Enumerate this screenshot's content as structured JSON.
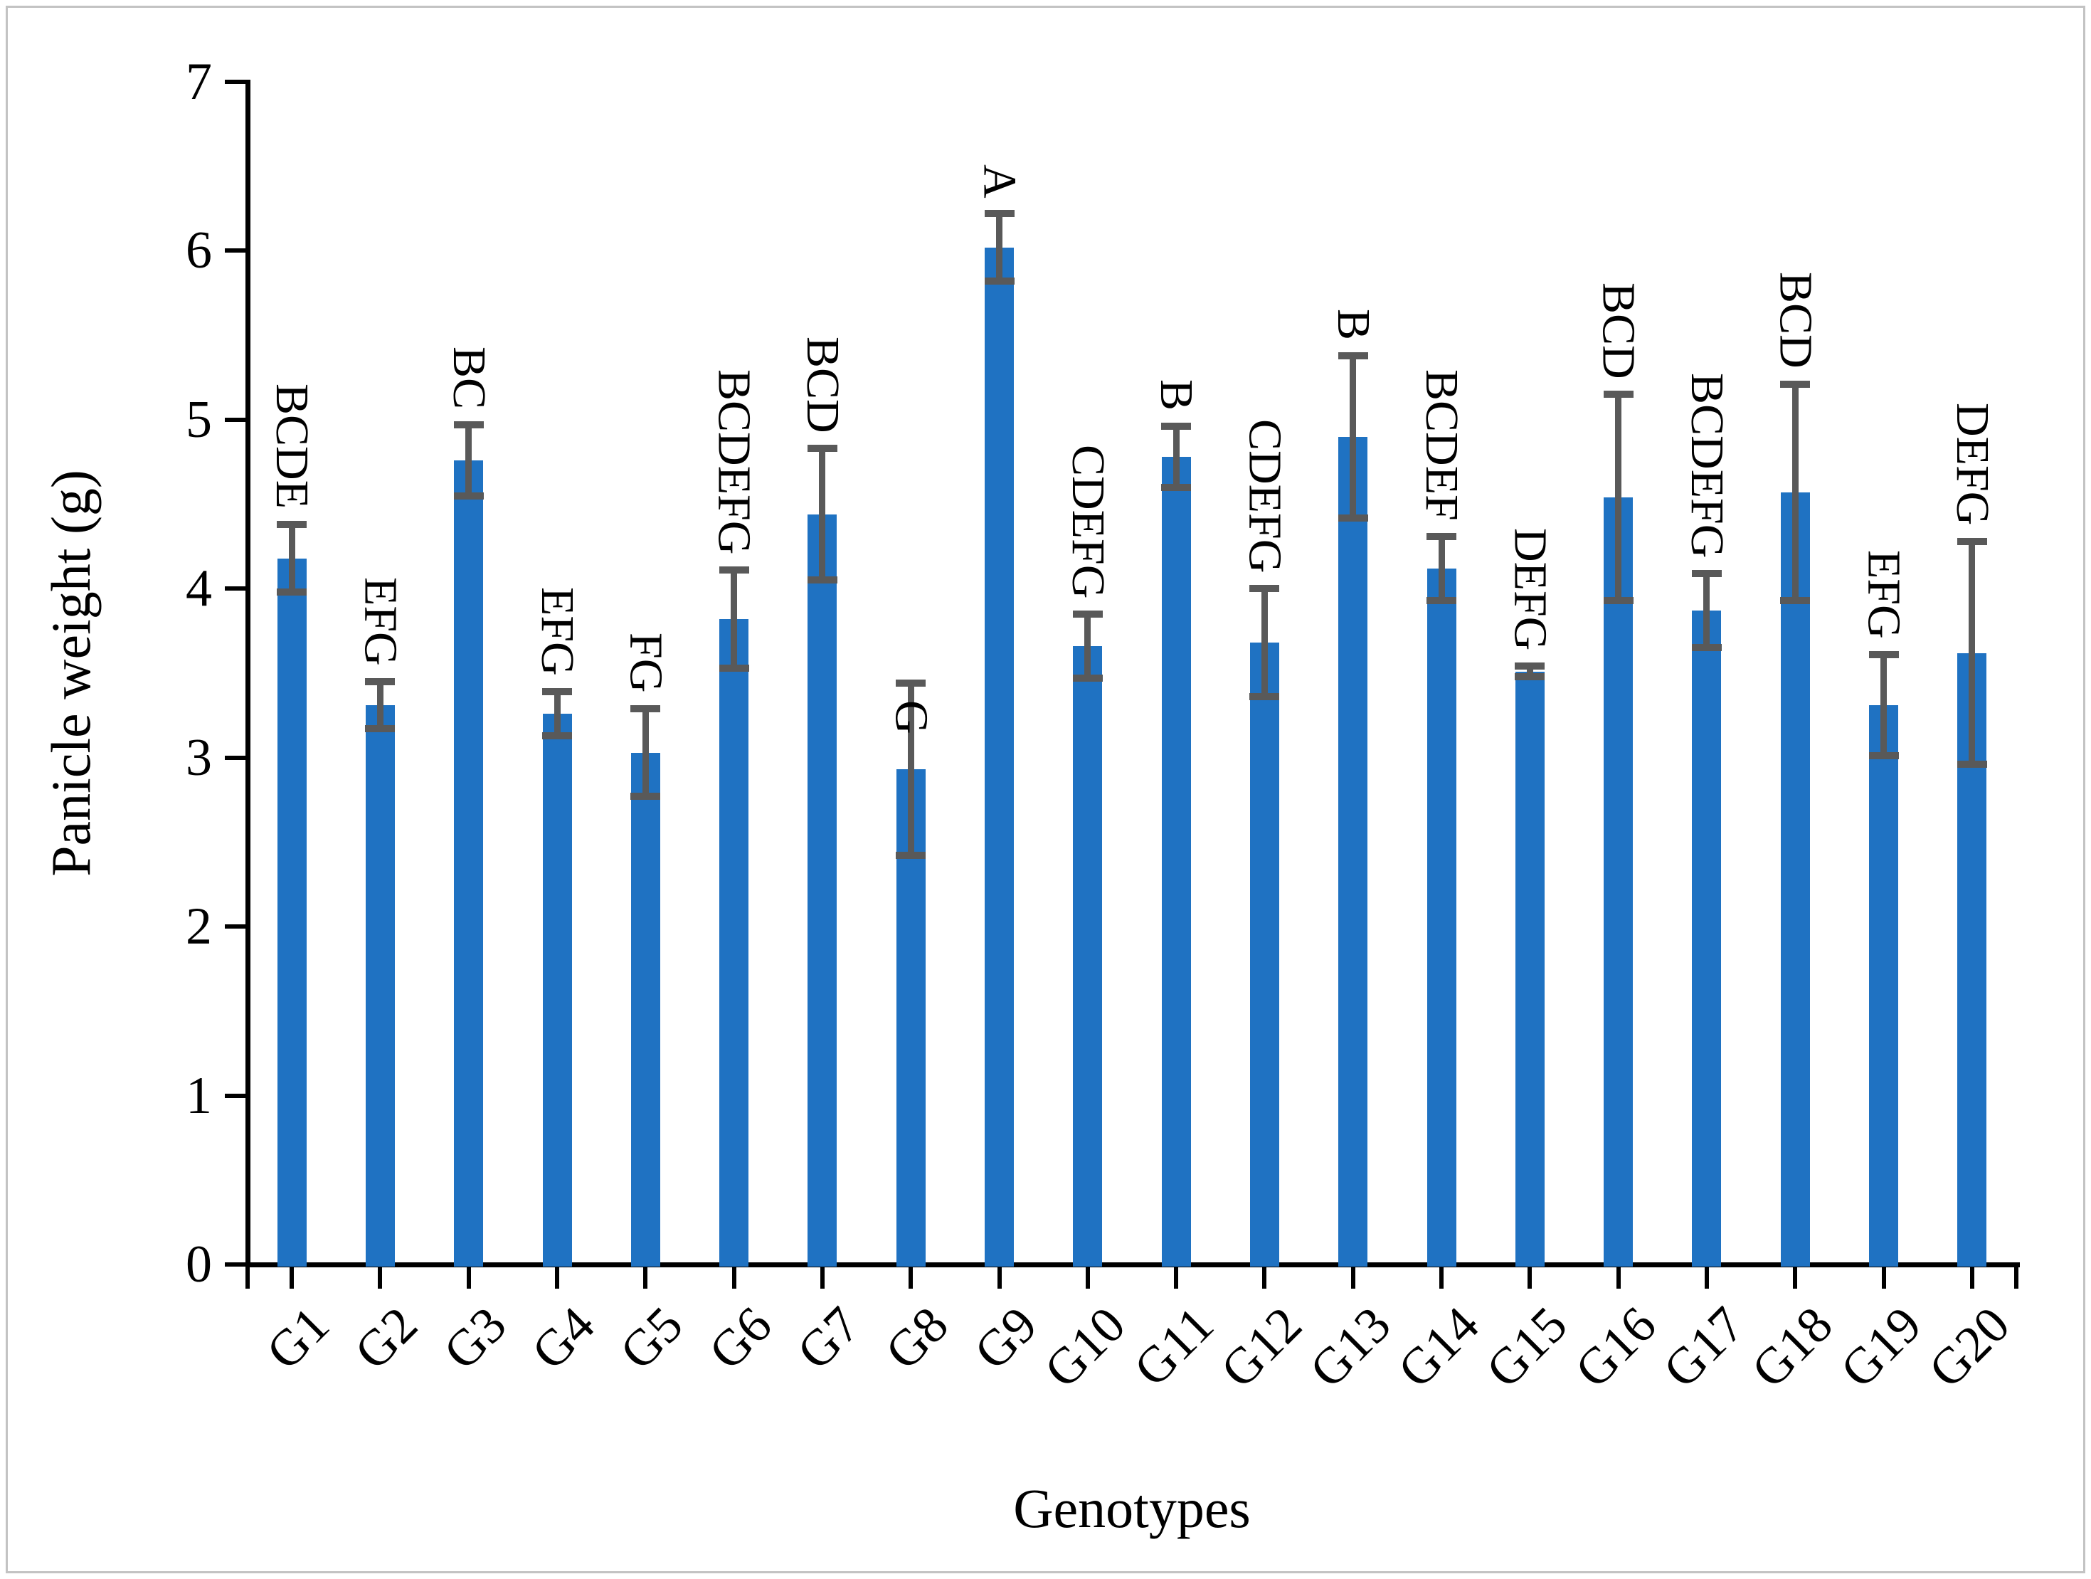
{
  "figure": {
    "border_color": "#c3c3c3",
    "background": "#ffffff"
  },
  "chart_data": {
    "type": "bar",
    "title": "",
    "xlabel": "Genotypes",
    "ylabel": "Panicle weight (g)",
    "ylim": [
      0,
      7
    ],
    "ytick_labels": [
      "0",
      "1",
      "2",
      "3",
      "4",
      "5",
      "6",
      "7"
    ],
    "grid": false,
    "legend": false,
    "categories": [
      "G1",
      "G2",
      "G3",
      "G4",
      "G5",
      "G6",
      "G7",
      "G8",
      "G9",
      "G10",
      "G11",
      "G12",
      "G13",
      "G14",
      "G15",
      "G16",
      "G17",
      "G18",
      "G19",
      "G20"
    ],
    "values": [
      4.18,
      3.31,
      4.76,
      3.26,
      3.03,
      3.82,
      4.44,
      2.93,
      6.02,
      3.66,
      4.78,
      3.68,
      4.9,
      4.12,
      3.51,
      4.54,
      3.87,
      4.57,
      3.31,
      3.62
    ],
    "error_bars": [
      0.2,
      0.14,
      0.21,
      0.13,
      0.26,
      0.29,
      0.39,
      0.51,
      0.2,
      0.19,
      0.18,
      0.32,
      0.48,
      0.19,
      0.03,
      0.61,
      0.22,
      0.64,
      0.3,
      0.66
    ],
    "group_letters": [
      "BCDE",
      "EFG",
      "BC",
      "EFG",
      "FG",
      "BCDEFG",
      "BCD",
      "G",
      "A",
      "CDEFG",
      "B",
      "CDEFG",
      "B",
      "BCDEF",
      "DEFG",
      "BCD",
      "BCDEFG",
      "BCD",
      "EFG",
      "DEFG"
    ],
    "bar_color": "#1f72c2",
    "error_color": "#595959",
    "axis_color": "#000000",
    "text_color": "#000000"
  }
}
